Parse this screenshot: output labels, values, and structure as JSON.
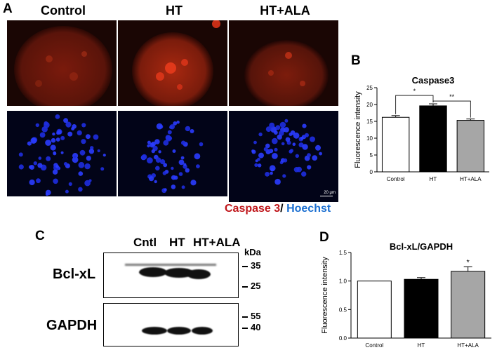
{
  "panel_a": {
    "letter": "A",
    "columns": [
      "Control",
      "HT",
      "HT+ALA"
    ],
    "scale_bar": "20 μm",
    "stain_red": "Caspase 3",
    "stain_sep": "/ ",
    "stain_blue": "Hoechst",
    "colors": {
      "caspase": "#c0171c",
      "hoechst": "#1b6fd1"
    }
  },
  "panel_c": {
    "letter": "C",
    "lanes": [
      "Cntl",
      "HT",
      "HT+ALA"
    ],
    "kda_label": "kDa",
    "blots": [
      {
        "label": "Bcl-xL",
        "markers": [
          "35",
          "25"
        ]
      },
      {
        "label": "GAPDH",
        "markers": [
          "55",
          "40"
        ]
      }
    ]
  },
  "panel_b": {
    "letter": "B",
    "chart_data": {
      "type": "bar",
      "title": "Caspase3",
      "ylabel": "Fluorescence intensity",
      "categories": [
        "Control",
        "HT",
        "HT+ALA"
      ],
      "values": [
        16.2,
        19.6,
        15.3
      ],
      "errors": [
        0.5,
        0.6,
        0.4
      ],
      "ylim": [
        0,
        25
      ],
      "yticks": [
        "0",
        "5",
        "10",
        "15",
        "20",
        "25"
      ],
      "bar_colors": [
        "#ffffff",
        "#000000",
        "#a6a6a6"
      ],
      "significance": [
        {
          "from": "Control",
          "to": "HT",
          "label": "*"
        },
        {
          "from": "HT",
          "to": "HT+ALA",
          "label": "**"
        }
      ]
    }
  },
  "panel_d": {
    "letter": "D",
    "chart_data": {
      "type": "bar",
      "title": "Bcl-xL/GAPDH",
      "ylabel": "Fluorescence intensity",
      "categories": [
        "Control",
        "HT",
        "HT+ALA"
      ],
      "values": [
        1.0,
        1.03,
        1.17
      ],
      "errors": [
        0.0,
        0.03,
        0.08
      ],
      "ylim": [
        0,
        1.5
      ],
      "yticks": [
        "0.0",
        "0.5",
        "1.0",
        "1.5"
      ],
      "bar_colors": [
        "#ffffff",
        "#000000",
        "#a6a6a6"
      ],
      "marks": [
        "",
        "",
        "*"
      ]
    }
  }
}
